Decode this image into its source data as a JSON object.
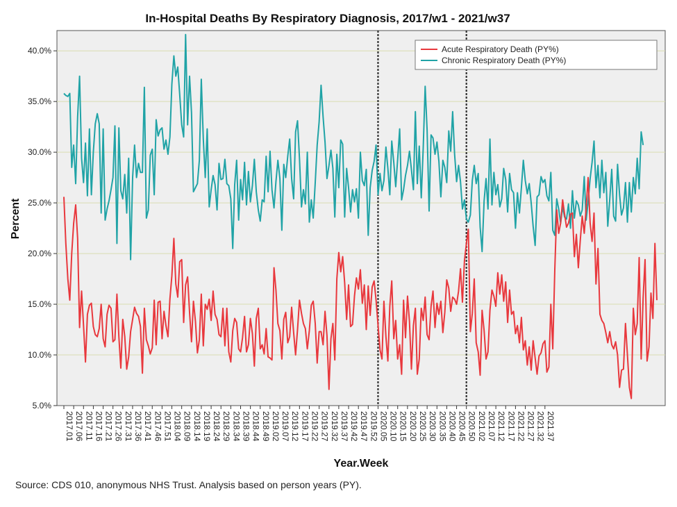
{
  "chart_data": {
    "type": "line",
    "title": "In-Hospital Deaths By Respiratory Diagnosis, 2017/w1 - 2021/w37",
    "xlabel": "Year.Week",
    "ylabel": "Percent",
    "ylim": [
      5,
      42
    ],
    "yticks": [
      "5.0%",
      "10.0%",
      "15.0%",
      "20.0%",
      "25.0%",
      "30.0%",
      "35.0%",
      "40.0%"
    ],
    "ytick_values": [
      5,
      10,
      15,
      20,
      25,
      30,
      35,
      40
    ],
    "grid": "horizontal",
    "legend_position": "top-right",
    "reference_lines_at": [
      "2020.05",
      "2020.50"
    ],
    "colors": {
      "acute": "#e8383d",
      "chronic": "#20a3a6",
      "plot_bg": "#efefef",
      "grid": "#d9dcb0"
    },
    "xticks": [
      "2017.01",
      "2017.06",
      "2017.11",
      "2017.16",
      "2017.21",
      "2017.26",
      "2017.31",
      "2017.36",
      "2017.41",
      "2017.46",
      "2017.51",
      "2018.04",
      "2018.09",
      "2018.14",
      "2018.19",
      "2018.24",
      "2018.29",
      "2018.34",
      "2018.39",
      "2018.44",
      "2018.49",
      "2019.02",
      "2019.07",
      "2019.12",
      "2019.17",
      "2019.22",
      "2019.27",
      "2019.32",
      "2019.37",
      "2019.42",
      "2019.47",
      "2019.52",
      "2020.05",
      "2020.10",
      "2020.15",
      "2020.20",
      "2020.25",
      "2020.30",
      "2020.35",
      "2020.40",
      "2020.45",
      "2020.50",
      "2021.02",
      "2021.07",
      "2021.12",
      "2021.17",
      "2021.22",
      "2021.27",
      "2021.32",
      "2021.37"
    ],
    "series": [
      {
        "name": "Acute Respiratory Death (PY%)",
        "color": "#e8383d",
        "values": [
          25.6,
          21.0,
          17.5,
          15.4,
          20.0,
          23.0,
          24.8,
          21.5,
          12.7,
          16.3,
          12.9,
          9.3,
          14.0,
          14.9,
          15.1,
          12.8,
          12.0,
          11.8,
          12.6,
          15.0,
          11.6,
          10.8,
          14.0,
          14.9,
          14.6,
          11.3,
          11.5,
          16.0,
          11.8,
          8.7,
          13.5,
          11.8,
          8.6,
          9.8,
          12.3,
          13.5,
          14.7,
          14.1,
          13.8,
          12.8,
          8.2,
          14.6,
          11.5,
          10.9,
          10.1,
          10.7,
          15.4,
          11.0,
          15.2,
          15.3,
          11.6,
          14.3,
          12.9,
          11.8,
          15.5,
          17.8,
          21.5,
          17.0,
          15.7,
          19.2,
          19.4,
          13.2,
          16.9,
          17.7,
          14.2,
          11.3,
          15.3,
          13.3,
          10.2,
          11.5,
          16.0,
          10.9,
          15.0,
          14.5,
          15.5,
          13.4,
          16.3,
          14.0,
          13.5,
          12.0,
          11.8,
          14.6,
          10.9,
          14.6,
          10.3,
          9.3,
          12.4,
          13.6,
          13.2,
          10.6,
          10.3,
          11.7,
          13.8,
          10.3,
          11.0,
          13.6,
          12.1,
          8.9,
          13.6,
          14.6,
          10.6,
          11.0,
          10.1,
          12.6,
          9.8,
          9.7,
          9.5,
          18.6,
          16.4,
          13.1,
          12.4,
          9.6,
          13.5,
          14.2,
          11.2,
          11.8,
          14.7,
          12.2,
          10.0,
          12.5,
          15.4,
          14.1,
          13.1,
          12.6,
          10.6,
          12.4,
          14.9,
          15.3,
          13.1,
          9.2,
          12.3,
          12.3,
          11.0,
          14.3,
          11.9,
          6.6,
          11.6,
          13.1,
          9.5,
          17.5,
          20.1,
          18.2,
          19.7,
          17.1,
          13.5,
          16.9,
          12.8,
          13.0,
          15.8,
          17.6,
          16.5,
          18.4,
          15.1,
          16.9,
          12.5,
          16.8,
          13.9,
          16.7,
          17.3,
          15.4,
          12.9,
          10.5,
          9.6,
          15.3,
          11.8,
          9.4,
          14.8,
          17.3,
          11.6,
          13.4,
          9.6,
          11.0,
          8.1,
          15.4,
          11.7,
          15.8,
          13.3,
          8.6,
          12.9,
          14.6,
          8.1,
          9.6,
          14.6,
          13.4,
          15.7,
          12.0,
          11.5,
          14.8,
          16.3,
          12.7,
          15.1,
          14.0,
          15.3,
          12.2,
          14.2,
          17.4,
          16.6,
          14.3,
          15.7,
          15.5,
          15.0,
          16.3,
          18.5,
          15.2,
          19.3,
          21.0,
          22.4,
          12.3,
          14.1,
          17.5,
          11.2,
          10.3,
          8.0,
          14.4,
          12.4,
          9.6,
          10.3,
          14.4,
          16.4,
          15.8,
          14.8,
          18.1,
          16.0,
          17.9,
          15.3,
          17.2,
          13.2,
          16.4,
          14.0,
          14.3,
          12.1,
          12.9,
          11.2,
          13.7,
          10.5,
          11.4,
          9.0,
          10.8,
          8.5,
          11.4,
          9.7,
          8.1,
          9.9,
          10.2,
          11.1,
          11.4,
          8.3,
          8.8,
          15.0,
          10.6,
          18.4,
          24.3,
          22.0,
          23.0,
          25.3,
          23.9,
          22.6,
          23.0,
          23.9,
          24.0,
          19.7,
          21.9,
          18.6,
          21.3,
          23.7,
          22.0,
          24.5,
          27.5,
          23.0,
          21.2,
          24.0,
          17.0,
          20.5,
          14.0,
          13.4,
          13.1,
          12.2,
          11.2,
          12.3,
          11.0,
          10.6,
          11.3,
          10.0,
          6.8,
          8.5,
          8.6,
          13.1,
          10.0,
          6.8,
          5.7,
          14.6,
          12.0,
          13.1,
          19.6,
          9.6,
          15.6,
          19.4,
          9.4,
          10.8,
          16.1,
          13.6,
          21.0,
          15.4
        ]
      },
      {
        "name": "Chronic Respiratory Death (PY%)",
        "color": "#20a3a6",
        "values": [
          35.8,
          35.6,
          35.5,
          35.8,
          28.5,
          30.7,
          26.9,
          33.5,
          37.5,
          29.4,
          27.0,
          30.9,
          25.7,
          32.3,
          25.8,
          30.0,
          32.8,
          33.8,
          32.8,
          24.0,
          32.3,
          23.3,
          24.4,
          25.2,
          26.3,
          27.5,
          32.6,
          21.0,
          32.4,
          26.2,
          25.4,
          27.8,
          24.0,
          29.4,
          19.4,
          27.5,
          30.7,
          27.5,
          28.9,
          28.0,
          28.0,
          36.4,
          23.5,
          24.3,
          29.7,
          30.3,
          25.8,
          33.2,
          31.6,
          32.2,
          32.4,
          30.3,
          31.2,
          29.8,
          31.5,
          36.7,
          39.5,
          37.5,
          38.4,
          35.7,
          32.7,
          31.5,
          41.6,
          32.7,
          37.5,
          33.9,
          26.1,
          26.5,
          26.9,
          29.2,
          37.2,
          31.3,
          27.5,
          32.3,
          24.6,
          26.3,
          27.7,
          26.8,
          24.3,
          28.9,
          27.3,
          27.4,
          29.3,
          26.9,
          26.7,
          25.4,
          20.5,
          26.8,
          29.2,
          23.3,
          27.3,
          25.3,
          29.0,
          24.8,
          28.1,
          25.1,
          26.7,
          29.3,
          26.1,
          24.3,
          23.2,
          25.3,
          25.1,
          29.6,
          26.1,
          30.1,
          26.3,
          24.5,
          27.1,
          29.2,
          27.4,
          22.3,
          28.8,
          27.5,
          29.6,
          31.3,
          27.4,
          25.4,
          32.0,
          33.1,
          29.4,
          24.6,
          26.3,
          24.9,
          30.0,
          23.1,
          25.3,
          23.5,
          27.0,
          30.7,
          33.0,
          36.6,
          33.5,
          31.0,
          27.4,
          28.7,
          30.2,
          28.4,
          23.6,
          29.8,
          26.5,
          31.2,
          30.8,
          23.6,
          28.4,
          26.5,
          24.1,
          26.3,
          25.1,
          26.4,
          23.5,
          30.0,
          27.2,
          26.7,
          28.3,
          21.8,
          26.5,
          28.2,
          29.1,
          30.7,
          25.8,
          27.9,
          26.2,
          27.2,
          30.5,
          28.4,
          25.8,
          31.1,
          29.0,
          26.6,
          29.3,
          32.3,
          25.3,
          26.3,
          27.7,
          28.7,
          30.1,
          28.3,
          26.3,
          34.0,
          26.9,
          30.6,
          25.5,
          30.4,
          36.5,
          32.2,
          24.2,
          31.7,
          31.4,
          29.8,
          31.0,
          29.1,
          25.6,
          29.2,
          28.5,
          27.0,
          32.1,
          30.1,
          34.0,
          29.8,
          27.1,
          28.7,
          27.1,
          24.4,
          25.3,
          23.4,
          23.1,
          23.8,
          27.2,
          28.7,
          26.9,
          27.9,
          22.6,
          20.2,
          25.2,
          27.4,
          24.4,
          31.3,
          24.8,
          28.0,
          25.8,
          26.8,
          24.6,
          25.4,
          28.4,
          27.3,
          24.1,
          27.9,
          26.3,
          26.0,
          22.5,
          26.0,
          24.0,
          26.5,
          29.2,
          27.2,
          25.9,
          26.9,
          25.0,
          22.7,
          20.8,
          25.6,
          25.8,
          27.6,
          27.0,
          27.3,
          25.7,
          25.2,
          28.0,
          22.3,
          21.8,
          25.4,
          24.4,
          23.0,
          24.6,
          23.6,
          23.4,
          24.9,
          22.5,
          26.2,
          23.5,
          25.2,
          24.8,
          23.7,
          24.3,
          27.6,
          23.3,
          25.1,
          27.4,
          29.0,
          31.1,
          26.5,
          28.7,
          25.5,
          29.2,
          26.0,
          28.0,
          22.7,
          25.3,
          28.3,
          23.7,
          23.2,
          28.8,
          25.8,
          23.8,
          24.5,
          27.0,
          23.1,
          27.0,
          24.1,
          27.5,
          25.9,
          29.4,
          26.4,
          32.0,
          30.7
        ]
      }
    ]
  },
  "source_note": "Source: CDS 010, anonymous NHS Trust. Analysis based on person years (PY)."
}
